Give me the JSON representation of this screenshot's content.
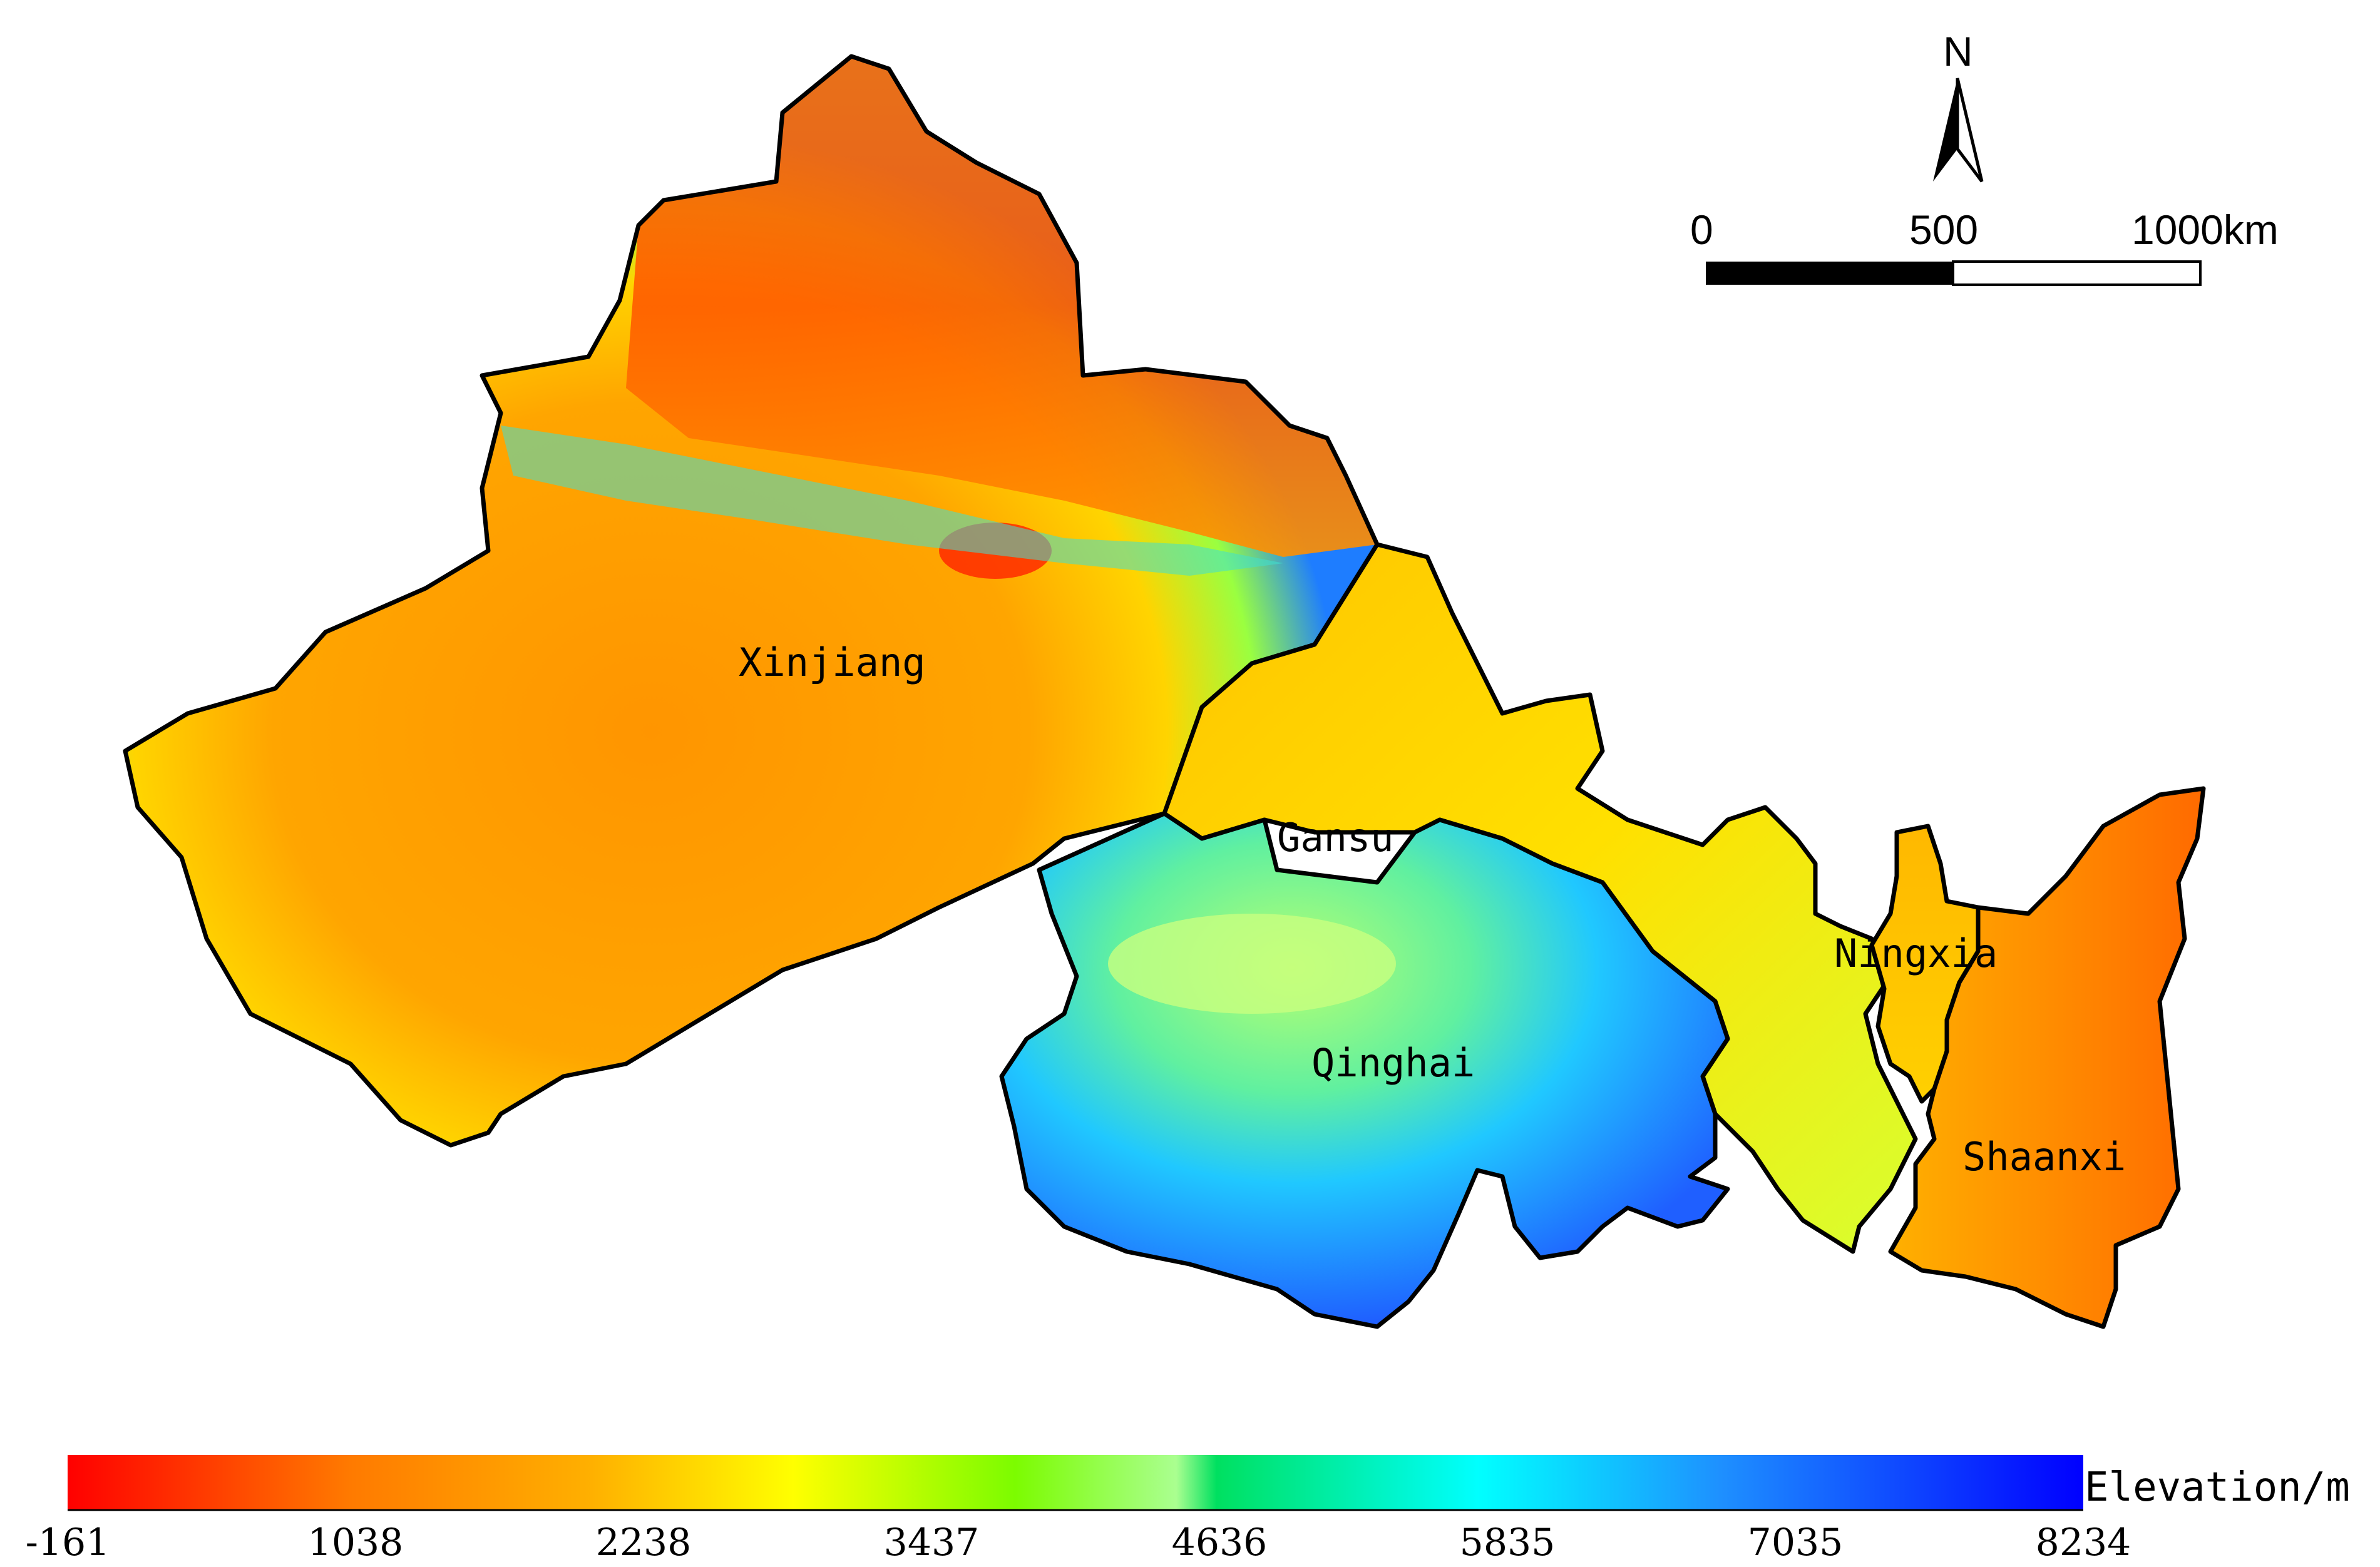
{
  "map": {
    "regions": [
      {
        "id": "xinjiang",
        "label": "Xinjiang"
      },
      {
        "id": "gansu",
        "label": "Gansu"
      },
      {
        "id": "qinghai",
        "label": "Qinghai"
      },
      {
        "id": "ningxia",
        "label": "Ningxia"
      },
      {
        "id": "shaanxi",
        "label": "Shaanxi"
      }
    ],
    "north_arrow": {
      "letter": "N",
      "icon": "north-arrow-icon"
    },
    "scale_bar": {
      "labels": [
        "0",
        "500",
        "1000km"
      ]
    },
    "legend": {
      "title": "Elevation/m",
      "ticks": [
        "-161",
        "1038",
        "2238",
        "3437",
        "4636",
        "5835",
        "7035",
        "8234"
      ],
      "colors": [
        "#ff0000",
        "#ff8c00",
        "#ffd700",
        "#ffff00",
        "#7cfc00",
        "#00e060",
        "#00ffff",
        "#1e90ff",
        "#0000ff"
      ]
    }
  }
}
